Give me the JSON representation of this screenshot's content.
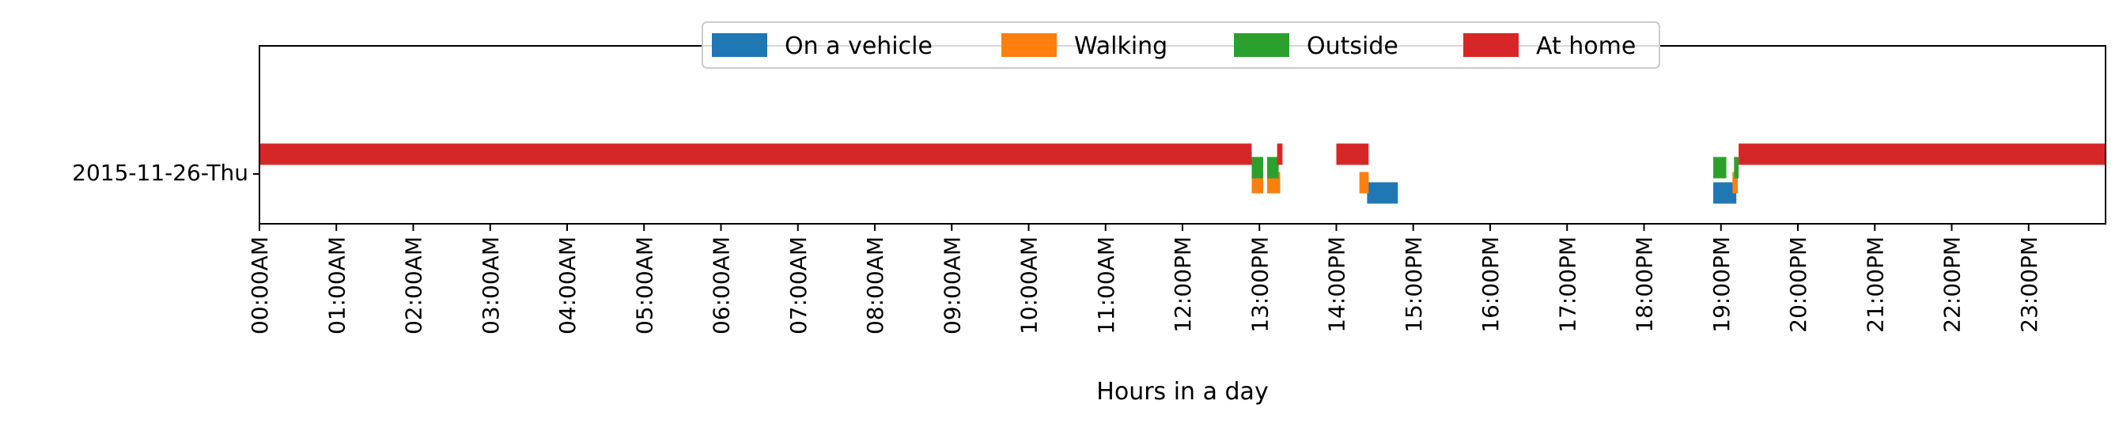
{
  "chart_data": {
    "type": "bar",
    "subtype": "horizontal-timeline",
    "title": "",
    "xlabel": "Hours in a day",
    "ylabel": "",
    "xlim": [
      0,
      24
    ],
    "x_unit": "hours",
    "categories": [
      "2015-11-26-Thu"
    ],
    "x_tick_labels": [
      "00:00AM",
      "01:00AM",
      "02:00AM",
      "03:00AM",
      "04:00AM",
      "05:00AM",
      "06:00AM",
      "07:00AM",
      "08:00AM",
      "09:00AM",
      "10:00AM",
      "11:00AM",
      "12:00PM",
      "13:00PM",
      "14:00PM",
      "15:00PM",
      "16:00PM",
      "17:00PM",
      "18:00PM",
      "19:00PM",
      "20:00PM",
      "21:00PM",
      "22:00PM",
      "23:00PM"
    ],
    "legend_position": "top-center",
    "grid": false,
    "series": [
      {
        "name": "On a vehicle",
        "color": "#1f77b4",
        "intervals": [
          [
            14.4,
            14.8
          ],
          [
            18.9,
            19.2
          ]
        ]
      },
      {
        "name": "Walking",
        "color": "#ff7f0e",
        "intervals": [
          [
            12.9,
            13.05
          ],
          [
            13.1,
            13.27
          ],
          [
            14.3,
            14.42
          ],
          [
            19.15,
            19.22
          ]
        ]
      },
      {
        "name": "Outside",
        "color": "#2ca02c",
        "intervals": [
          [
            12.9,
            13.05
          ],
          [
            13.1,
            13.25
          ],
          [
            18.9,
            19.07
          ],
          [
            19.17,
            19.23
          ]
        ]
      },
      {
        "name": "At home",
        "color": "#d62728",
        "intervals": [
          [
            0,
            12.9
          ],
          [
            13.23,
            13.3
          ],
          [
            14.0,
            14.42
          ],
          [
            19.23,
            24
          ]
        ]
      }
    ]
  }
}
